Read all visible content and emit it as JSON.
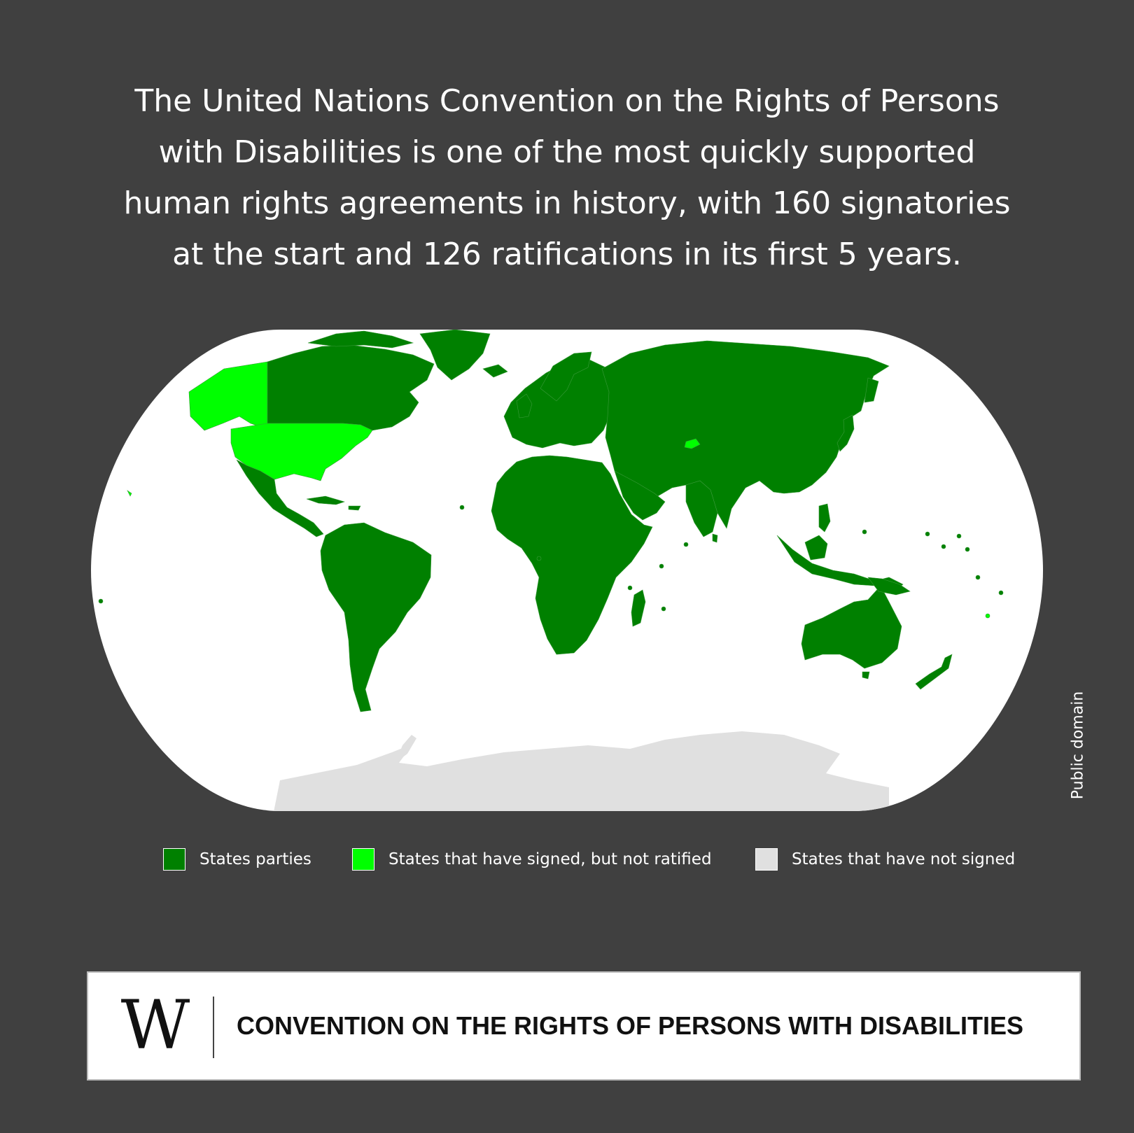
{
  "headline": {
    "lines": [
      "The United Nations Convention on the Rights of Persons",
      "with Disabilities is one of the most quickly supported",
      "human rights agreements in history, with 160 signatories",
      "at the start and 126 ratifications in its first 5 years."
    ]
  },
  "map": {
    "colors": {
      "states_parties": "#008000",
      "signed_not_ratified": "#00ff00",
      "not_signed": "#e0e0e0",
      "ocean": "#ffffff",
      "border": "#3a9a3a"
    },
    "highlighted": [
      "United States",
      "Alaska",
      "Tajikistan"
    ],
    "unsigned_region": "Antarctica"
  },
  "legend": {
    "items": [
      {
        "label": "States parties",
        "color": "#008000"
      },
      {
        "label": "States that have signed, but not ratified",
        "color": "#00ff00"
      },
      {
        "label": "States that have not signed",
        "color": "#e0e0e0"
      }
    ]
  },
  "credit": "Public domain",
  "footer": {
    "logo_text": "W",
    "title": "CONVENTION ON THE RIGHTS OF PERSONS WITH DISABILITIES"
  }
}
